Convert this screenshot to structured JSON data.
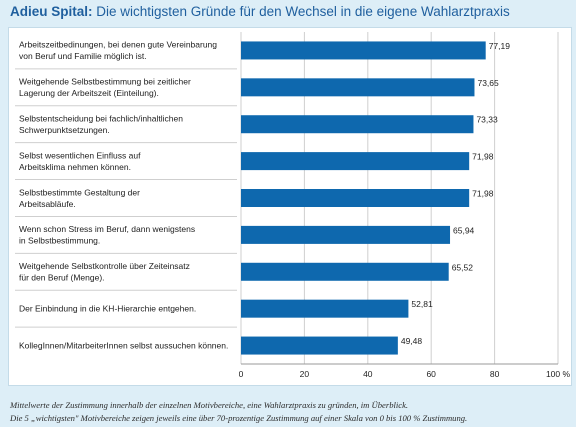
{
  "title": {
    "bold": "Adieu Spital:",
    "rest": " Die wichtigsten Gründe für den Wechsel in die eigene Wahlarztpraxis"
  },
  "colors": {
    "bar": "#0e68ae",
    "title": "#1f5f9e",
    "background": "#ddeef7",
    "grid": "#cfcfcf"
  },
  "chart_data": {
    "type": "bar",
    "orientation": "horizontal",
    "categories": [
      [
        "Arbeitszeitbedinungen, bei denen gute Vereinbarung",
        "von Beruf und Familie möglich ist."
      ],
      [
        "Weitgehende Selbstbestimmung bei zeitlicher",
        "Lagerung der Arbeitszeit (Einteilung)."
      ],
      [
        "Selbstentscheidung bei fachlich/inhaltlichen",
        "Schwerpunktsetzungen."
      ],
      [
        "Selbst wesentlichen Einfluss auf",
        "Arbeitsklima nehmen können."
      ],
      [
        "Selbstbestimmte Gestaltung der",
        "Arbeitsabläufe."
      ],
      [
        "Wenn schon Stress im Beruf, dann wenigstens",
        "in Selbstbestimmung."
      ],
      [
        "Weitgehende Selbstkontrolle über Zeiteinsatz",
        "für den Beruf (Menge)."
      ],
      [
        "Der Einbindung in die KH-Hierarchie entgehen."
      ],
      [
        "KollegInnen/MitarbeiterInnen selbst aussuchen können."
      ]
    ],
    "values": [
      77.19,
      73.65,
      73.33,
      71.98,
      71.98,
      65.94,
      65.52,
      52.81,
      49.48
    ],
    "value_labels": [
      "77,19",
      "73,65",
      "73,33",
      "71,98",
      "71,98",
      "65,94",
      "65,52",
      "52,81",
      "49,48"
    ],
    "xlim": [
      0,
      100
    ],
    "xticks": [
      0,
      20,
      40,
      60,
      80,
      100
    ],
    "xtick_labels": [
      "0",
      "20",
      "40",
      "60",
      "80",
      "100 %"
    ],
    "grid": true
  },
  "caption": {
    "line1": "Mittelwerte der Zustimmung innerhalb der einzelnen Motivbereiche, eine Wahlarztpraxis zu gründen, im Überblick.",
    "line2": "Die 5 „wichtigsten\" Motivbereiche zeigen jeweils eine über 70-prozentige Zustimmung auf einer Skala von 0 bis 100 % Zustimmung."
  }
}
